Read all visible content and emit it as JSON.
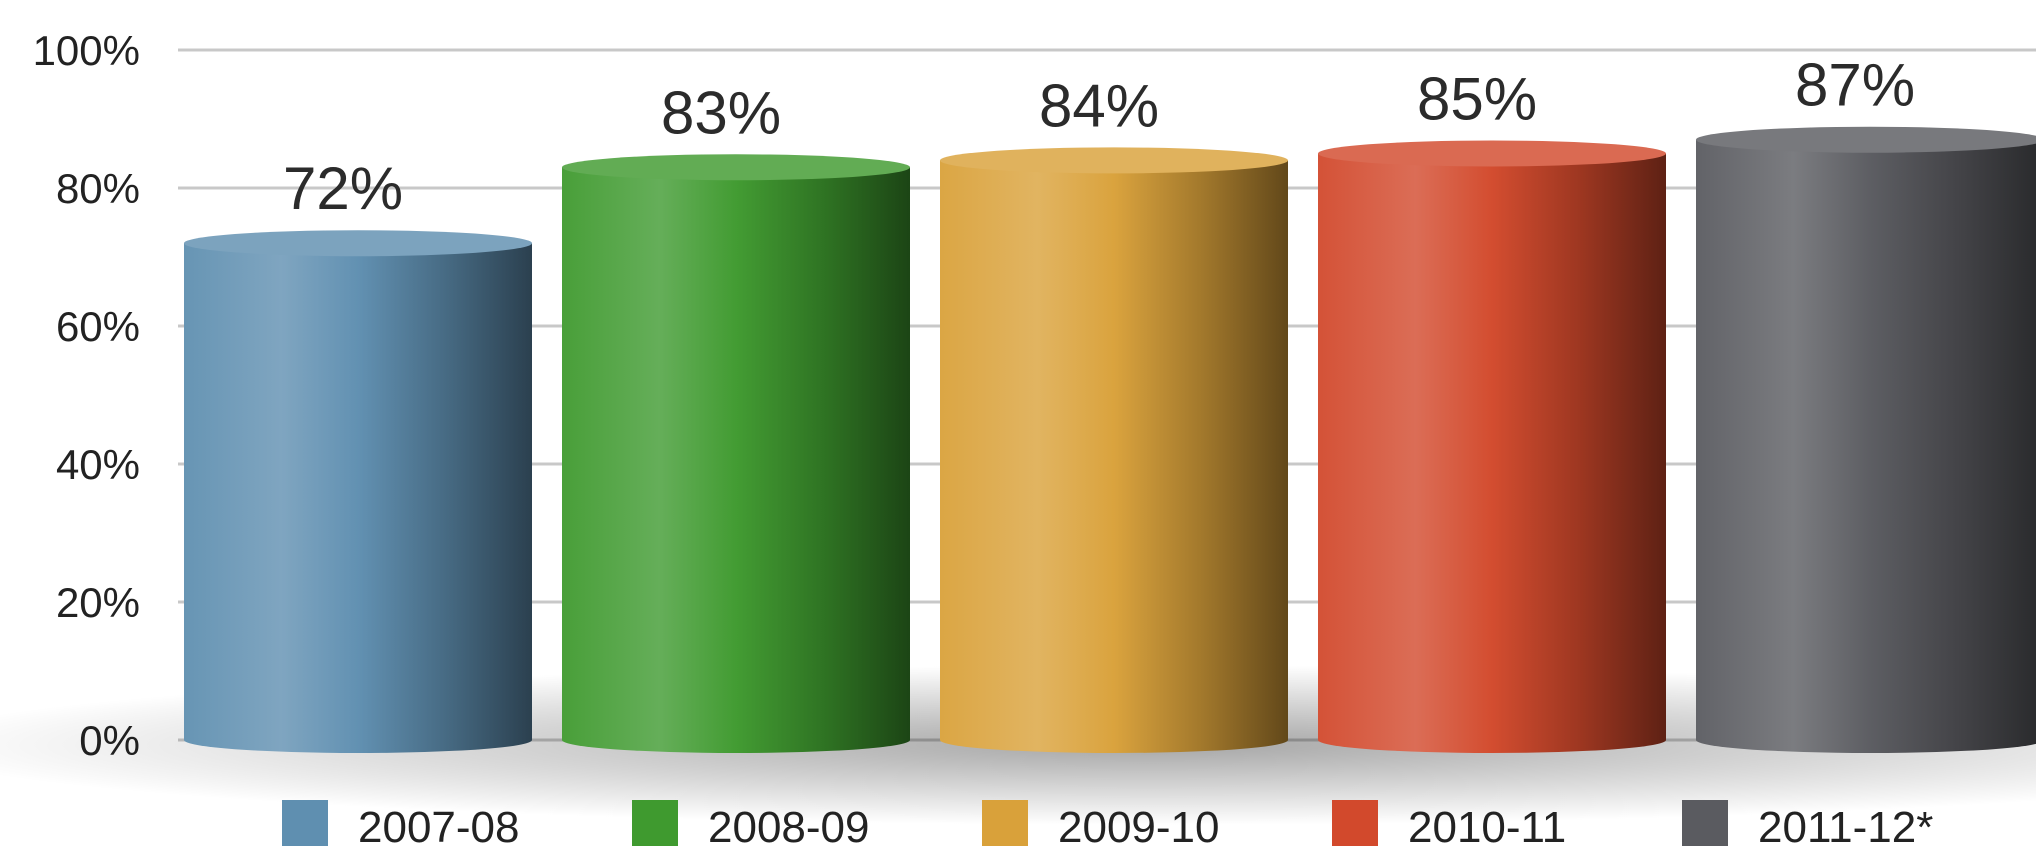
{
  "chart_data": {
    "type": "bar",
    "title": "",
    "xlabel": "",
    "ylabel": "",
    "categories": [
      "2007-08",
      "2008-09",
      "2009-10",
      "2010-11",
      "2011-12*"
    ],
    "series": [
      {
        "values": [
          72,
          83,
          84,
          85,
          87
        ],
        "data_labels": [
          "72%",
          "83%",
          "84%",
          "85%",
          "87%"
        ]
      }
    ],
    "colors": [
      "#5f8fb0",
      "#3f9a2f",
      "#d9a13a",
      "#d2492c",
      "#5a5b60"
    ],
    "ylim": [
      0,
      100
    ],
    "y_ticks": [
      0,
      20,
      40,
      60,
      80,
      100
    ],
    "y_tick_labels": [
      "0%",
      "20%",
      "40%",
      "60%",
      "80%",
      "100%"
    ],
    "grid": true,
    "legend": {
      "placement": "bottom",
      "entries": [
        "2007-08",
        "2008-09",
        "2009-10",
        "2010-11",
        "2011-12*"
      ]
    }
  }
}
